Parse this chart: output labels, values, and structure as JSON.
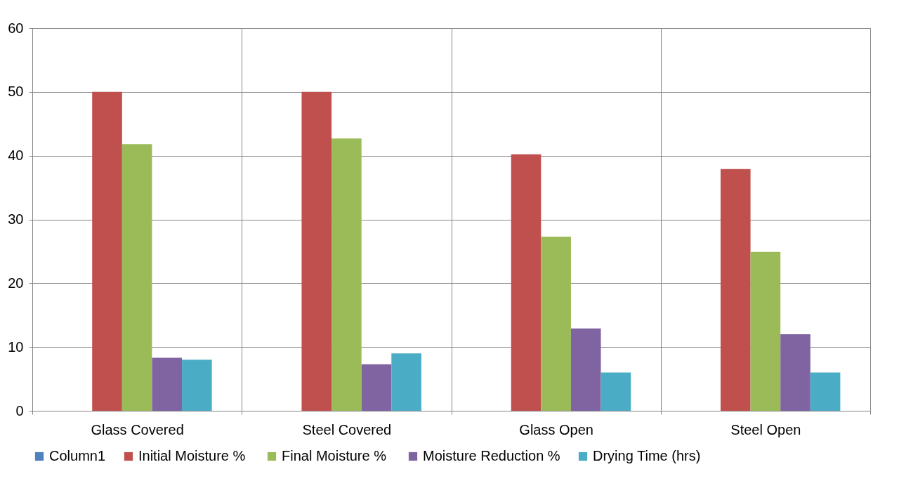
{
  "chart_data": {
    "type": "bar",
    "categories": [
      "Glass Covered",
      "Steel Covered",
      "Glass Open",
      "Steel Open"
    ],
    "series": [
      {
        "name": "Column1",
        "color": "#4f81bd",
        "values": [
          null,
          null,
          null,
          null
        ]
      },
      {
        "name": "Initial Moisture  %",
        "color": "#c0504d",
        "values": [
          50.0,
          50.0,
          40.2,
          37.9
        ]
      },
      {
        "name": "Final Moisture  %",
        "color": "#9bbb59",
        "values": [
          41.8,
          42.7,
          27.3,
          24.9
        ]
      },
      {
        "name": "Moisture Reduction %",
        "color": "#8064a2",
        "values": [
          8.3,
          7.3,
          12.9,
          12.0
        ]
      },
      {
        "name": "Drying Time (hrs)",
        "color": "#4bacc6",
        "values": [
          8.0,
          9.0,
          6.0,
          6.0
        ]
      }
    ],
    "ylim": [
      0,
      60
    ],
    "yticks": [
      0,
      10,
      20,
      30,
      40,
      50,
      60
    ],
    "grid": true,
    "legend": "bottom"
  }
}
